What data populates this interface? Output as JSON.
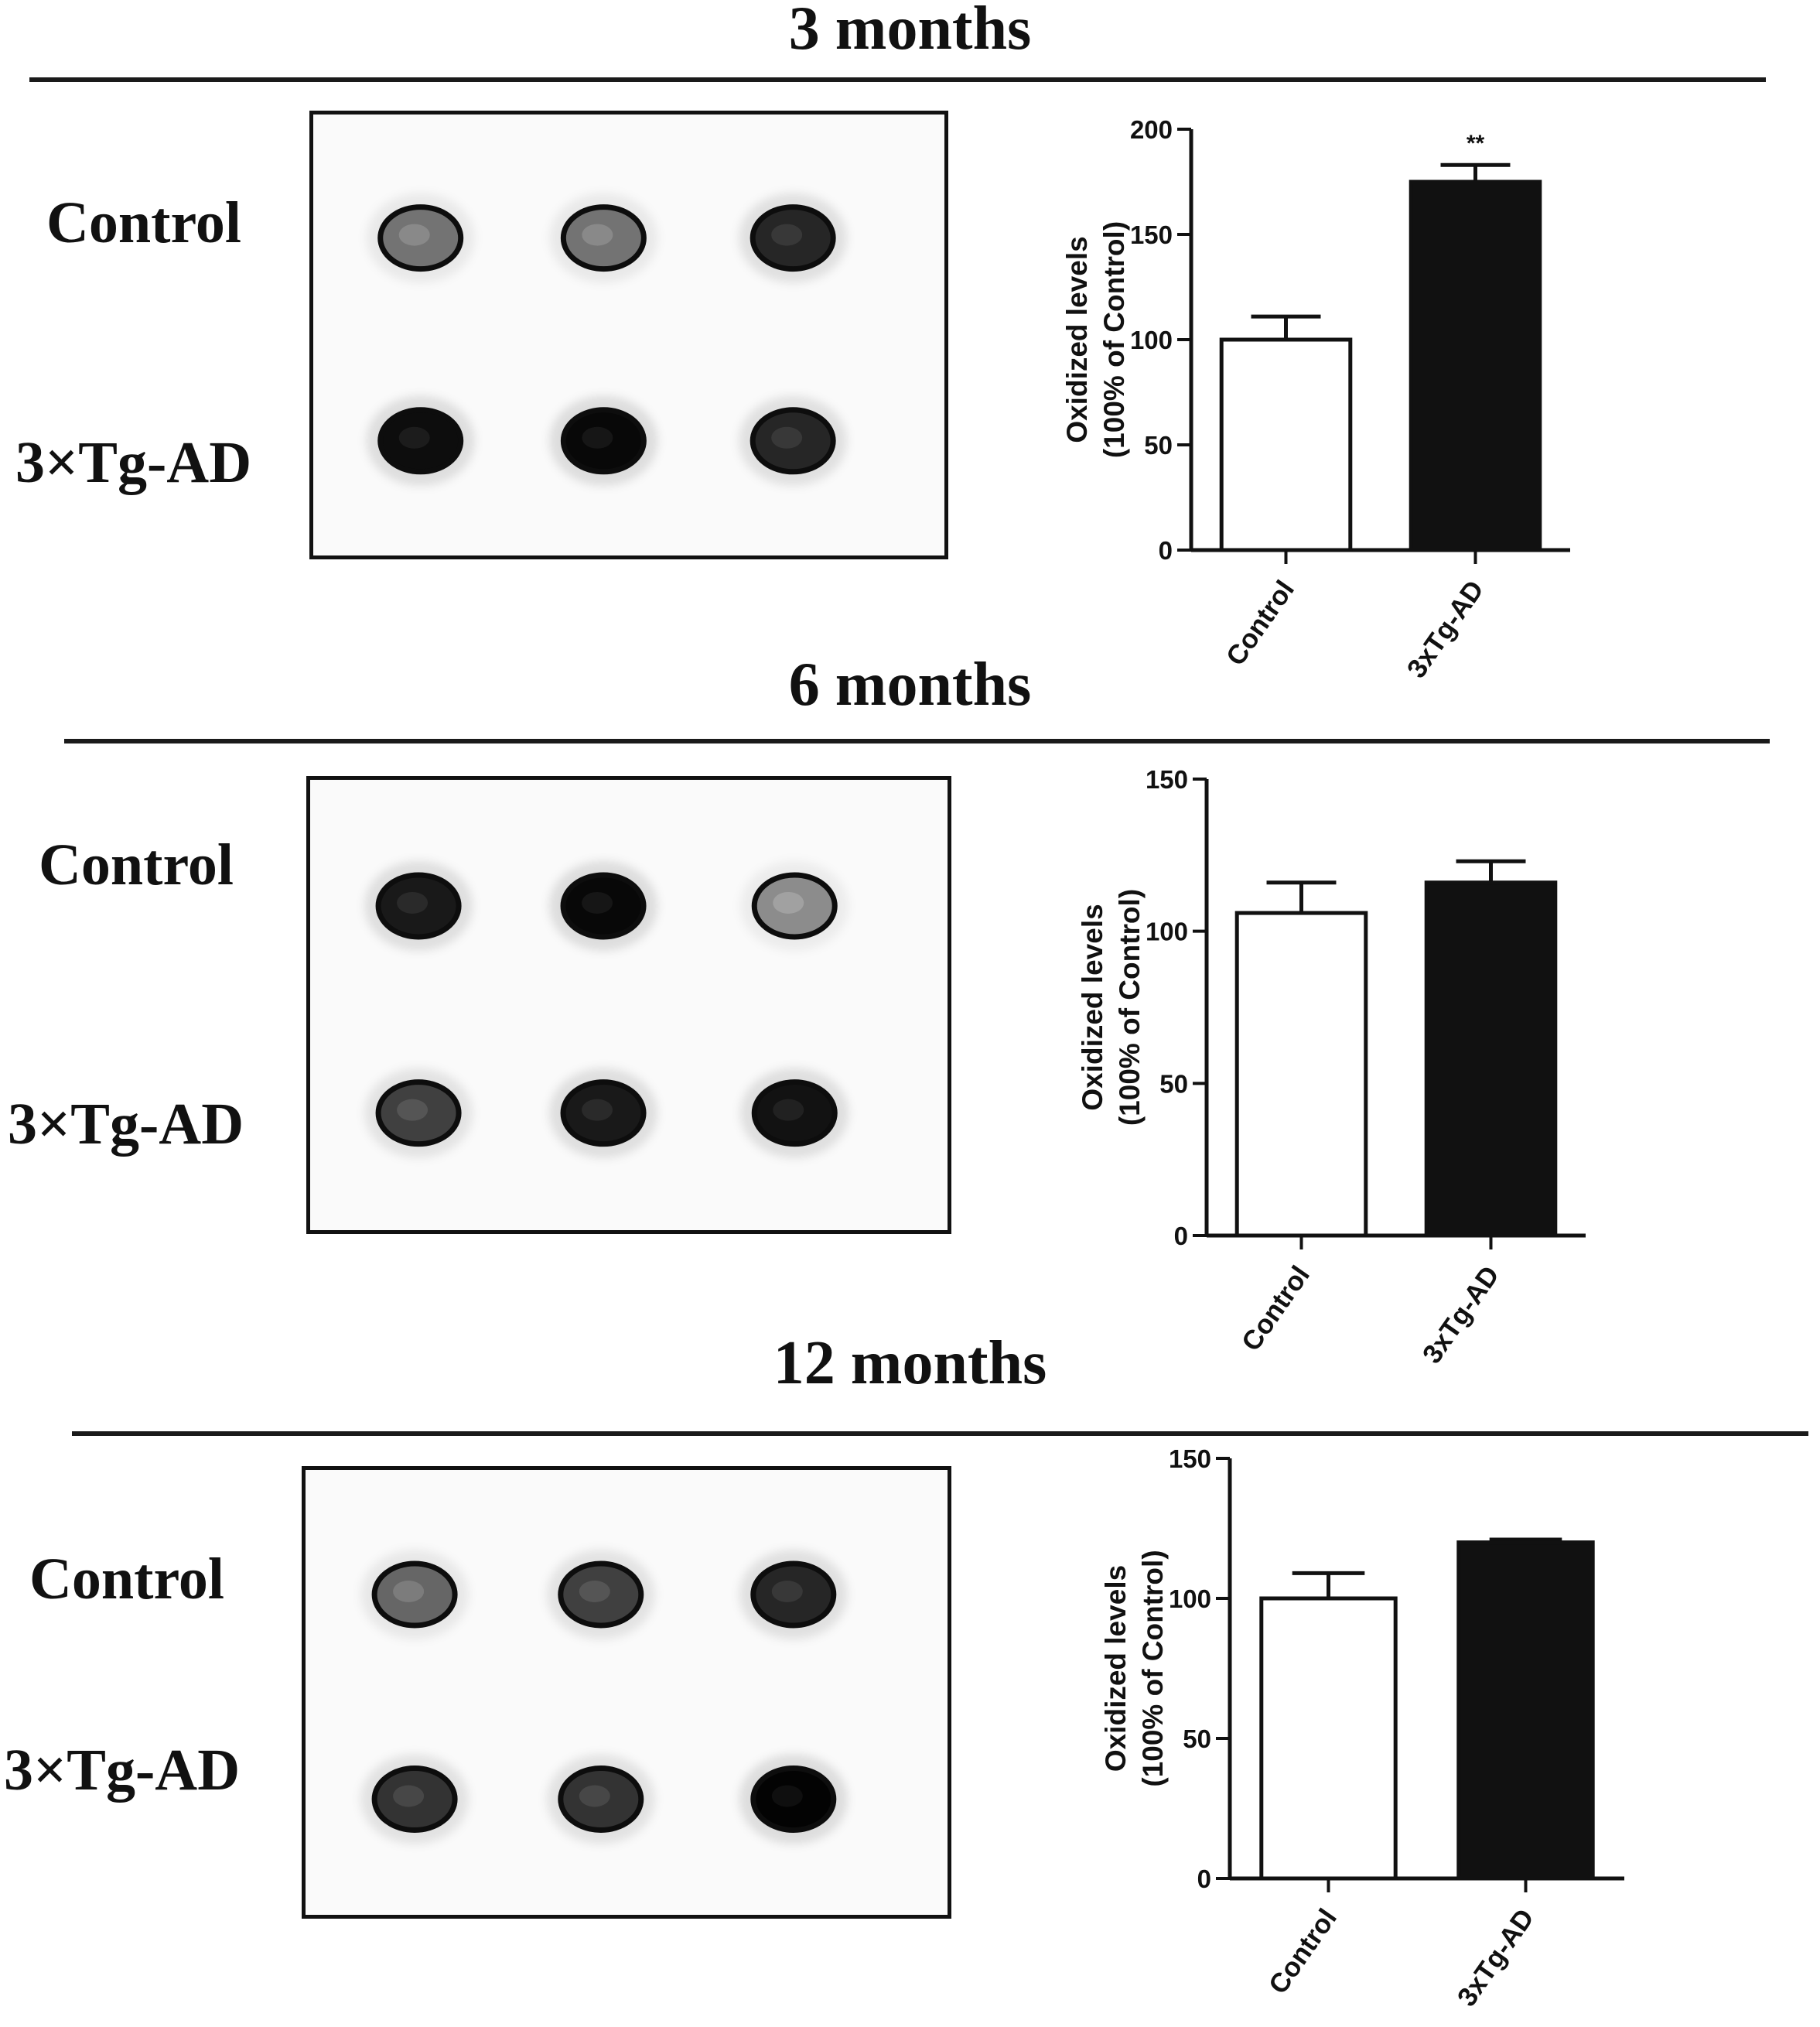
{
  "colors": {
    "control_bar": "#ffffff",
    "tg_bar": "#111111",
    "axis": "#111111"
  },
  "panels": [
    {
      "title": "3 months",
      "row_labels": [
        "Control",
        "3×Tg-AD"
      ],
      "blot": {
        "control_spots": [
          {
            "darkness": 0.55
          },
          {
            "darkness": 0.55
          },
          {
            "darkness": 0.85
          }
        ],
        "tg_spots": [
          {
            "darkness": 0.95
          },
          {
            "darkness": 0.97
          },
          {
            "darkness": 0.85
          }
        ]
      }
    },
    {
      "title": "6 months",
      "row_labels": [
        "Control",
        "3×Tg-AD"
      ],
      "blot": {
        "control_spots": [
          {
            "darkness": 0.9
          },
          {
            "darkness": 0.97
          },
          {
            "darkness": 0.45
          }
        ],
        "tg_spots": [
          {
            "darkness": 0.75
          },
          {
            "darkness": 0.9
          },
          {
            "darkness": 0.93
          }
        ]
      }
    },
    {
      "title": "12 months",
      "row_labels": [
        "Control",
        "3×Tg-AD"
      ],
      "blot": {
        "control_spots": [
          {
            "darkness": 0.6
          },
          {
            "darkness": 0.75
          },
          {
            "darkness": 0.85
          }
        ],
        "tg_spots": [
          {
            "darkness": 0.8
          },
          {
            "darkness": 0.8
          },
          {
            "darkness": 0.99
          }
        ]
      }
    }
  ],
  "chart_data": [
    {
      "type": "bar",
      "categories": [
        "Control",
        "3xTg-AD"
      ],
      "values": [
        100,
        175
      ],
      "errors": [
        11,
        8
      ],
      "ylabel": [
        "Oxidized levels",
        "(100% of Control)"
      ],
      "ylim": [
        0,
        200
      ],
      "yticks": [
        0,
        50,
        100,
        150,
        200
      ],
      "annotations": [
        "",
        "**"
      ]
    },
    {
      "type": "bar",
      "categories": [
        "Control",
        "3xTg-AD"
      ],
      "values": [
        106,
        116
      ],
      "errors": [
        10,
        7
      ],
      "ylabel": [
        "Oxidized levels",
        "(100% of Control)"
      ],
      "ylim": [
        0,
        150
      ],
      "yticks": [
        0,
        50,
        100,
        150
      ],
      "annotations": [
        "",
        ""
      ]
    },
    {
      "type": "bar",
      "categories": [
        "Control",
        "3xTg-AD"
      ],
      "values": [
        100,
        120
      ],
      "errors": [
        9,
        1
      ],
      "ylabel": [
        "Oxidized levels",
        "(100% of Control)"
      ],
      "ylim": [
        0,
        150
      ],
      "yticks": [
        0,
        50,
        100,
        150
      ],
      "annotations": [
        "",
        ""
      ]
    }
  ]
}
